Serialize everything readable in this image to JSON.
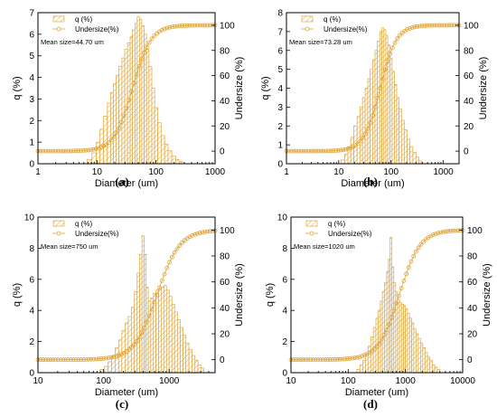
{
  "colors": {
    "bar": "#e0a53a",
    "curve": "#e0a53a",
    "axis": "#000000"
  },
  "chart_data": [
    {
      "type": "bar",
      "panel_label": "(a)",
      "xlabel": "Diameter (um)",
      "ylabel_left": "q (%)",
      "ylabel_right": "Undersize (%)",
      "x_scale": "log",
      "xlim": [
        1,
        1000
      ],
      "x_ticks": [
        1,
        10,
        100,
        1000
      ],
      "x_tick_labels": [
        "1",
        "10",
        "100",
        "1000"
      ],
      "ylim": [
        0,
        7
      ],
      "y_ticks": [
        0,
        1,
        2,
        3,
        4,
        5,
        6,
        7
      ],
      "y2lim": [
        -10,
        110
      ],
      "y2_ticks": [
        0,
        20,
        40,
        60,
        80,
        100
      ],
      "legend": [
        "q (%)",
        "Undersize(%)"
      ],
      "mean_text": "Mean size=44.70 um",
      "bars": {
        "x": [
          7.5,
          9,
          10.5,
          12,
          14,
          16,
          18,
          20,
          22,
          25,
          28,
          31,
          35,
          38,
          42,
          46,
          50,
          55,
          60,
          66,
          72,
          80,
          90,
          100,
          115,
          130,
          150,
          170,
          200,
          230,
          260
        ],
        "q": [
          0.2,
          0.5,
          1.0,
          1.6,
          2.2,
          2.8,
          3.3,
          3.7,
          4.1,
          4.5,
          4.9,
          5.3,
          5.6,
          5.9,
          6.2,
          6.5,
          6.8,
          6.7,
          6.4,
          6.0,
          5.3,
          4.5,
          3.5,
          2.6,
          1.9,
          1.3,
          0.9,
          0.6,
          0.35,
          0.2,
          0.1
        ]
      },
      "undersize": {
        "x50": 40,
        "width": 0.34
      }
    },
    {
      "type": "bar",
      "panel_label": "(b)",
      "xlabel": "Diameter (um)",
      "ylabel_left": "q (%)",
      "ylabel_right": "Undersize (%)",
      "x_scale": "log",
      "xlim": [
        1,
        2000
      ],
      "x_ticks": [
        1,
        10,
        100,
        1000
      ],
      "x_tick_labels": [
        "1",
        "10",
        "100",
        "1000"
      ],
      "ylim": [
        0,
        8
      ],
      "y_ticks": [
        0,
        1,
        2,
        3,
        4,
        5,
        6,
        7,
        8
      ],
      "y2lim": [
        -10,
        110
      ],
      "y2_ticks": [
        0,
        20,
        40,
        60,
        80,
        100
      ],
      "legend": [
        "q (%)",
        "Undersize(%)"
      ],
      "mean_text": "Mean size=73.28 um",
      "bars": {
        "x": [
          12,
          14,
          16,
          18,
          21,
          24,
          27,
          30,
          34,
          38,
          42,
          47,
          52,
          58,
          64,
          70,
          76,
          83,
          90,
          100,
          110,
          122,
          135,
          150,
          168,
          190,
          215,
          245,
          280,
          320,
          360
        ],
        "q": [
          0.2,
          0.5,
          0.9,
          1.4,
          2.0,
          2.5,
          3.0,
          3.5,
          4.0,
          4.5,
          5.0,
          5.5,
          6.0,
          6.5,
          7.0,
          7.2,
          7.1,
          6.8,
          6.3,
          5.6,
          4.9,
          4.2,
          3.5,
          2.9,
          2.3,
          1.8,
          1.3,
          0.9,
          0.6,
          0.35,
          0.15
        ]
      },
      "undersize": {
        "x50": 62,
        "width": 0.34
      }
    },
    {
      "type": "bar",
      "panel_label": "(c)",
      "xlabel": "Diameter (um)",
      "ylabel_left": "q (%)",
      "ylabel_right": "Undersize (%)",
      "x_scale": "log",
      "xlim": [
        10,
        5000
      ],
      "x_ticks": [
        10,
        100,
        1000
      ],
      "x_tick_labels": [
        "10",
        "100",
        "1000"
      ],
      "ylim": [
        0,
        10
      ],
      "y_ticks": [
        0,
        2,
        4,
        6,
        8,
        10
      ],
      "y2lim": [
        -10,
        110
      ],
      "y2_ticks": [
        0,
        20,
        40,
        60,
        80,
        100
      ],
      "legend": [
        "q (%)",
        "Undersize(%)"
      ],
      "mean_text": "Mean size=750 um",
      "bars": {
        "x": [
          95,
          110,
          125,
          140,
          160,
          180,
          200,
          225,
          250,
          280,
          310,
          340,
          370,
          400,
          430,
          460,
          500,
          550,
          600,
          660,
          720,
          790,
          870,
          950,
          1050,
          1150,
          1270,
          1400,
          1550,
          1700,
          1900,
          2100,
          2350,
          2600,
          2900,
          3200
        ],
        "q": [
          0.2,
          0.4,
          0.7,
          1.1,
          1.6,
          2.1,
          2.7,
          3.2,
          3.6,
          4.2,
          5.2,
          6.4,
          7.6,
          8.8,
          7.6,
          5.5,
          4.6,
          4.8,
          5.1,
          5.3,
          5.4,
          5.5,
          5.6,
          5.3,
          4.9,
          4.4,
          3.9,
          3.4,
          2.9,
          2.4,
          1.9,
          1.5,
          1.1,
          0.8,
          0.5,
          0.3
        ]
      },
      "undersize": {
        "x50": 650,
        "width": 0.38
      }
    },
    {
      "type": "bar",
      "panel_label": "(d)",
      "xlabel": "Diameter (um)",
      "ylabel_left": "q (%)",
      "ylabel_right": "Undersize (%)",
      "x_scale": "log",
      "xlim": [
        10,
        10000
      ],
      "x_ticks": [
        10,
        100,
        1000,
        10000
      ],
      "x_tick_labels": [
        "10",
        "100",
        "1000",
        "10000"
      ],
      "ylim": [
        0,
        10
      ],
      "y_ticks": [
        0,
        2,
        4,
        6,
        8,
        10
      ],
      "y2lim": [
        -10,
        110
      ],
      "y2_ticks": [
        0,
        20,
        40,
        60,
        80,
        100
      ],
      "legend": [
        "q (%)",
        "Undersize(%)"
      ],
      "mean_text": "Mean size=1020 um",
      "bars": {
        "x": [
          150,
          170,
          190,
          210,
          235,
          260,
          290,
          320,
          350,
          380,
          410,
          450,
          490,
          520,
          560,
          600,
          650,
          700,
          760,
          820,
          890,
          960,
          1040,
          1130,
          1230,
          1340,
          1460,
          1600,
          1750,
          1920,
          2100,
          2300,
          2550,
          2800,
          3100,
          3400,
          3800
        ],
        "q": [
          0.2,
          0.5,
          0.8,
          1.2,
          1.7,
          2.3,
          2.9,
          3.5,
          4.0,
          4.6,
          5.2,
          5.8,
          6.5,
          7.3,
          8.7,
          6.8,
          5.8,
          5.2,
          4.7,
          4.5,
          4.4,
          4.3,
          4.1,
          3.8,
          3.5,
          3.2,
          2.8,
          2.5,
          2.2,
          1.9,
          1.6,
          1.3,
          1.0,
          0.8,
          0.5,
          0.35,
          0.2
        ]
      },
      "undersize": {
        "x50": 780,
        "width": 0.4
      }
    }
  ]
}
